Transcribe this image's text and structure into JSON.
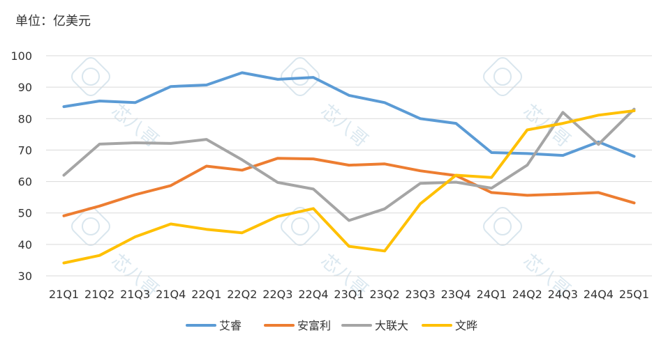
{
  "chart_data": {
    "type": "line",
    "unit_label": "单位：亿美元",
    "categories": [
      "21Q1",
      "21Q2",
      "21Q3",
      "21Q4",
      "22Q1",
      "22Q2",
      "22Q3",
      "22Q4",
      "23Q1",
      "23Q2",
      "23Q3",
      "23Q4",
      "24Q1",
      "24Q2",
      "24Q3",
      "24Q4",
      "25Q1"
    ],
    "ylim": [
      30,
      100
    ],
    "yticks": [
      30,
      40,
      50,
      60,
      70,
      80,
      90,
      100
    ],
    "grid": true,
    "legend_position": "bottom",
    "series": [
      {
        "name": "艾睿",
        "color": "#5b9bd5",
        "values": [
          83.8,
          85.6,
          85.1,
          90.2,
          90.7,
          94.6,
          92.5,
          93.1,
          87.4,
          85.1,
          80.0,
          78.5,
          69.2,
          68.9,
          68.3,
          72.6,
          68.0
        ]
      },
      {
        "name": "安富利",
        "color": "#ed7d31",
        "values": [
          49.1,
          52.2,
          55.8,
          58.7,
          64.9,
          63.6,
          67.4,
          67.2,
          65.2,
          65.6,
          63.4,
          61.9,
          56.5,
          55.6,
          56.0,
          56.5,
          53.2
        ]
      },
      {
        "name": "大联大",
        "color": "#a5a5a5",
        "values": [
          62.0,
          71.9,
          72.3,
          72.1,
          73.4,
          66.9,
          59.7,
          57.6,
          47.6,
          51.3,
          59.4,
          59.8,
          57.9,
          65.2,
          82.0,
          71.8,
          83.0
        ]
      },
      {
        "name": "文晔",
        "color": "#ffc000",
        "values": [
          34.1,
          36.5,
          42.4,
          46.5,
          44.8,
          43.7,
          48.9,
          51.4,
          39.4,
          37.9,
          52.9,
          62.0,
          61.3,
          76.4,
          78.5,
          81.1,
          82.5
        ]
      }
    ]
  },
  "watermark": {
    "text": "芯八哥"
  }
}
